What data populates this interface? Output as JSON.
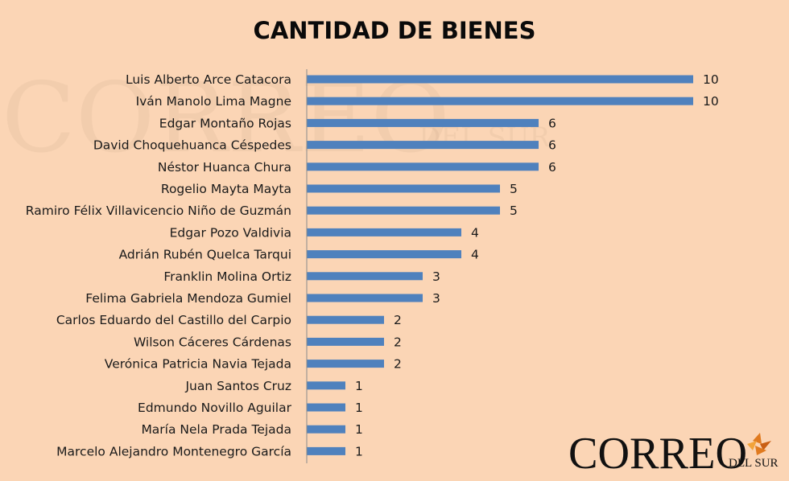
{
  "chart_data": {
    "type": "bar",
    "orientation": "horizontal",
    "title": "CANTIDAD DE BIENES",
    "categories": [
      "Luis Alberto Arce Catacora",
      "Iván Manolo Lima Magne",
      "Edgar Montaño Rojas",
      "David Choquehuanca Céspedes",
      "Néstor Huanca Chura",
      "Rogelio Mayta Mayta",
      "Ramiro Félix Villavicencio Niño de Guzmán",
      "Edgar Pozo Valdivia",
      "Adrián Rubén Quelca Tarqui",
      "Franklin Molina Ortiz",
      "Felima Gabriela Mendoza Gumiel",
      "Carlos Eduardo del Castillo del Carpio",
      "Wilson Cáceres Cárdenas",
      "Verónica Patricia Navia Tejada",
      "Juan Santos Cruz",
      "Edmundo Novillo Aguilar",
      "María Nela Prada Tejada",
      "Marcelo Alejandro Montenegro García"
    ],
    "values": [
      10,
      10,
      6,
      6,
      6,
      5,
      5,
      4,
      4,
      3,
      3,
      2,
      2,
      2,
      1,
      1,
      1,
      1
    ],
    "xlim": [
      0,
      10
    ],
    "data_labels": true,
    "grid": false,
    "bar_color": "#4f81bd",
    "background_color": "#fbd5b5"
  },
  "branding": {
    "logo_main": "CORREO",
    "logo_sub": "DEL SUR",
    "logo_icon": "leaf-icon",
    "accent_color": "#e07a1f"
  }
}
